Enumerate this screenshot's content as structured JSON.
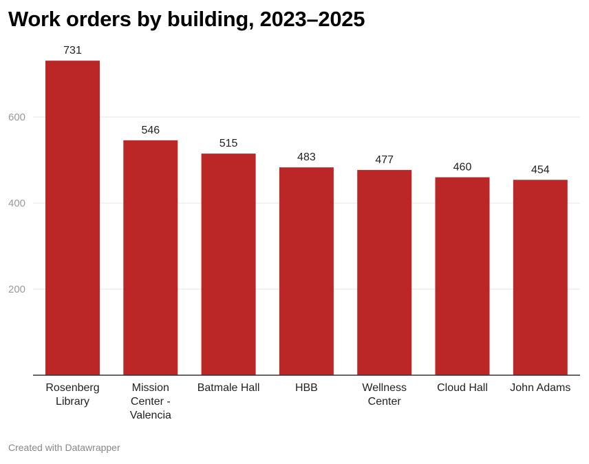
{
  "title": "Work orders by building, 2023–2025",
  "footer": "Created with Datawrapper",
  "colors": {
    "bar": "#bb2626",
    "grid": "#e4e4e4",
    "tick": "#9a9a9a",
    "axis": "#333333"
  },
  "chart_data": {
    "type": "bar",
    "title": "Work orders by building, 2023–2025",
    "xlabel": "",
    "ylabel": "",
    "categories": [
      [
        "Rosenberg",
        "Library"
      ],
      [
        "Mission",
        "Center -",
        "Valencia"
      ],
      [
        "Batmale Hall"
      ],
      [
        "HBB"
      ],
      [
        "Wellness",
        "Center"
      ],
      [
        "Cloud Hall"
      ],
      [
        "John Adams"
      ]
    ],
    "values": [
      731,
      546,
      515,
      483,
      477,
      460,
      454
    ],
    "value_labels": [
      "731",
      "546",
      "515",
      "483",
      "477",
      "460",
      "454"
    ],
    "yticks": [
      200,
      400,
      600
    ],
    "ytick_labels": [
      "200",
      "400",
      "600"
    ],
    "ylim": [
      0,
      750
    ],
    "grid": true
  }
}
